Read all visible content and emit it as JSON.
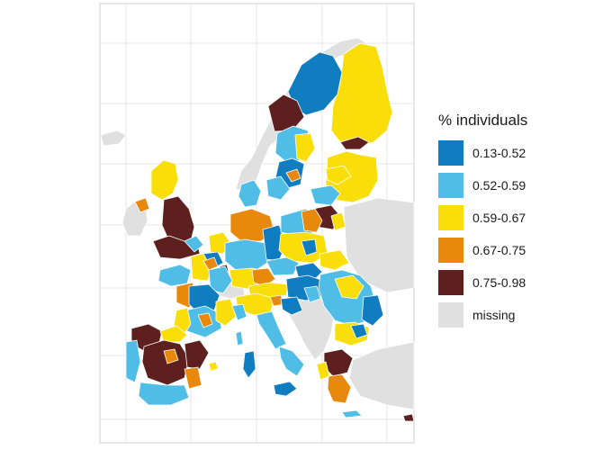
{
  "legend": {
    "title": "% individuals",
    "items": [
      {
        "label": "0.13-0.52",
        "color": "#0f7dbf"
      },
      {
        "label": "0.52-0.59",
        "color": "#4fbde6"
      },
      {
        "label": "0.59-0.67",
        "color": "#f9de0a"
      },
      {
        "label": "0.67-0.75",
        "color": "#e8890c"
      },
      {
        "label": "0.75-0.98",
        "color": "#5e1f1f"
      },
      {
        "label": "missing",
        "color": "#e0e0e0"
      }
    ]
  },
  "colors": {
    "frame": "#cfcfcf",
    "grid": "#e6e6e6",
    "land_missing": "#e0e0e0",
    "border": "#ffffff"
  }
}
